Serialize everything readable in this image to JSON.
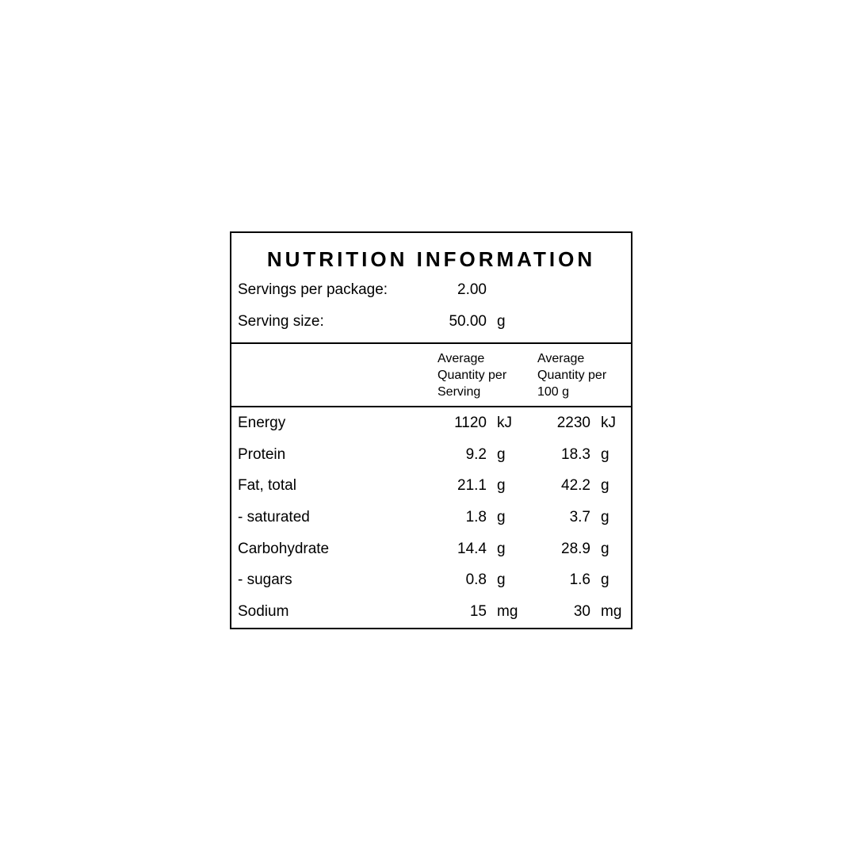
{
  "panel": {
    "title": "NUTRITION INFORMATION",
    "servings_row": {
      "label": "Servings per package:",
      "value": "2.00",
      "unit": ""
    },
    "serving_size_row": {
      "label": "Serving size:",
      "value": "50.00",
      "unit": "g"
    },
    "columns": {
      "per_serving": "Average Quantity per Serving",
      "per_100g": "Average Quantity per 100 g"
    },
    "rows": [
      {
        "nutrient": "Energy",
        "per_serving": "1120",
        "per_serving_unit": "kJ",
        "per_100g": "2230",
        "per_100g_unit": "kJ"
      },
      {
        "nutrient": "Protein",
        "per_serving": "9.2",
        "per_serving_unit": "g",
        "per_100g": "18.3",
        "per_100g_unit": "g"
      },
      {
        "nutrient": "Fat, total",
        "per_serving": "21.1",
        "per_serving_unit": "g",
        "per_100g": "42.2",
        "per_100g_unit": "g"
      },
      {
        "nutrient": "- saturated",
        "per_serving": "1.8",
        "per_serving_unit": "g",
        "per_100g": "3.7",
        "per_100g_unit": "g"
      },
      {
        "nutrient": "Carbohydrate",
        "per_serving": "14.4",
        "per_serving_unit": "g",
        "per_100g": "28.9",
        "per_100g_unit": "g"
      },
      {
        "nutrient": "- sugars",
        "per_serving": "0.8",
        "per_serving_unit": "g",
        "per_100g": "1.6",
        "per_100g_unit": "g"
      },
      {
        "nutrient": "Sodium",
        "per_serving": "15",
        "per_serving_unit": "mg",
        "per_100g": "30",
        "per_100g_unit": "mg"
      }
    ]
  }
}
